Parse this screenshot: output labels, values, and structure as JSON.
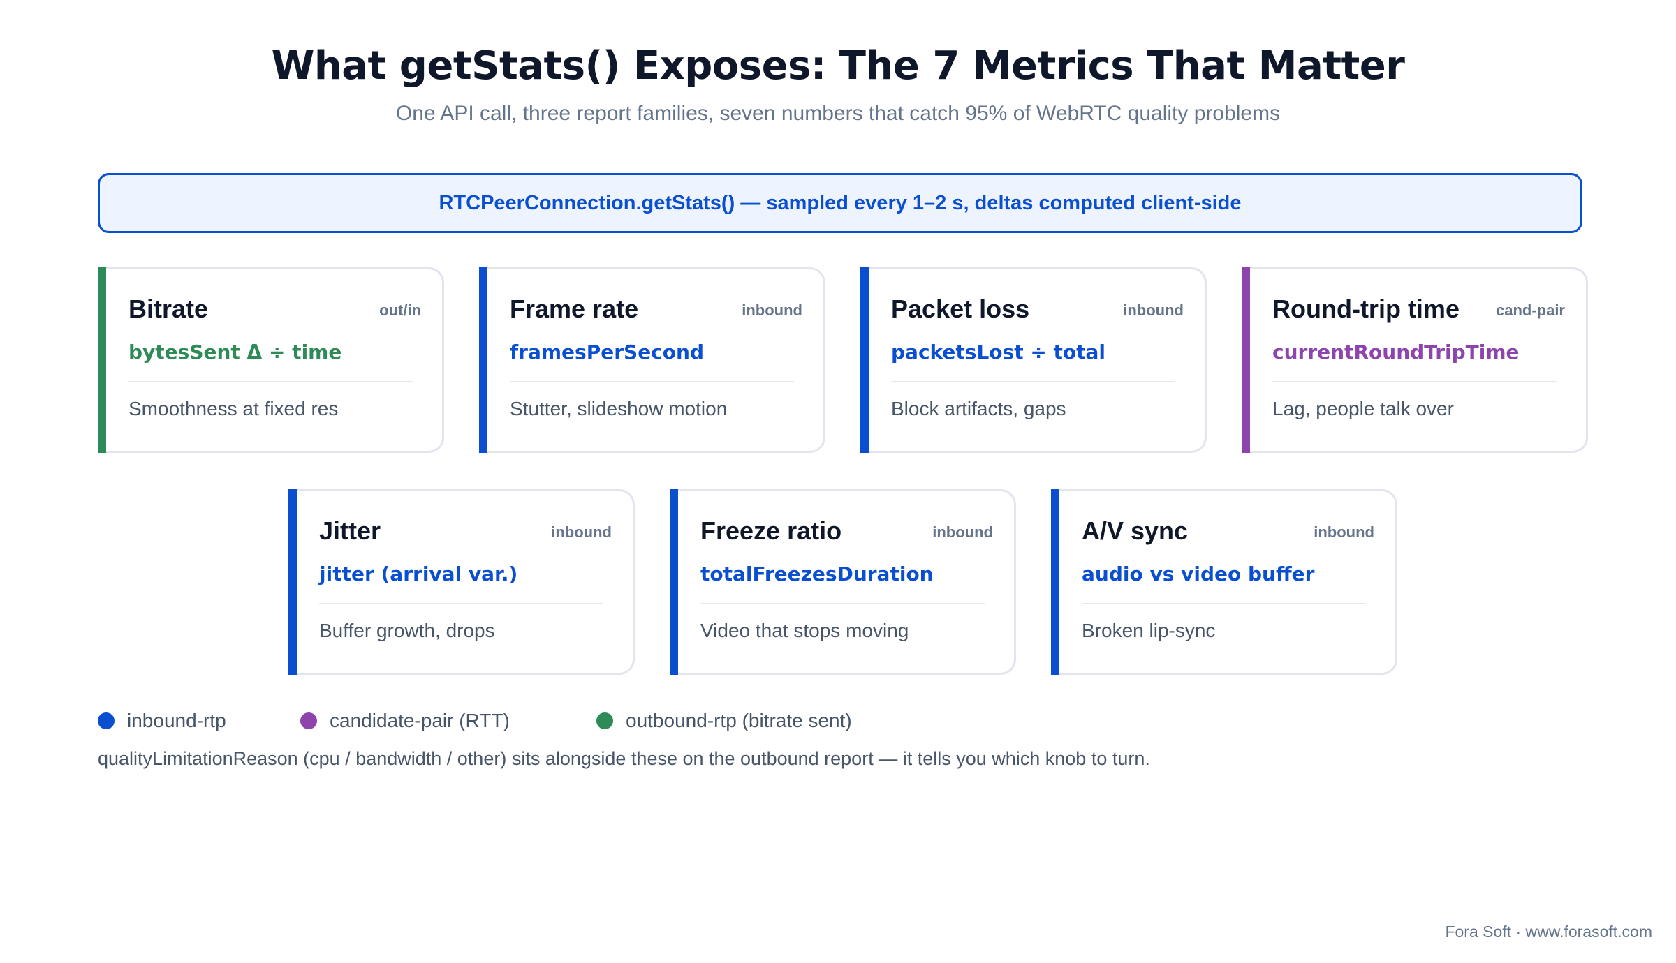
{
  "header": {
    "title": "What getStats() Exposes: The 7 Metrics That Matter",
    "subtitle": "One API call, three report families, seven numbers that catch 95% of WebRTC quality problems"
  },
  "banner": {
    "text": "RTCPeerConnection.getStats() — sampled every 1–2 s, deltas computed client-side"
  },
  "colors": {
    "inbound": "#0b4fd1",
    "candidate_pair": "#8e44ad",
    "outbound": "#2e8b57",
    "card_border": "#e2e5ee"
  },
  "cards": [
    {
      "name": "Bitrate",
      "tag": "out/in",
      "metric": "bytesSent Δ ÷ time",
      "desc": "Smoothness at fixed res",
      "family": "outbound"
    },
    {
      "name": "Frame rate",
      "tag": "inbound",
      "metric": "framesPerSecond",
      "desc": "Stutter, slideshow motion",
      "family": "inbound"
    },
    {
      "name": "Packet loss",
      "tag": "inbound",
      "metric": "packetsLost ÷ total",
      "desc": "Block artifacts, gaps",
      "family": "inbound"
    },
    {
      "name": "Round-trip time",
      "tag": "cand-pair",
      "metric": "currentRoundTripTime",
      "desc": "Lag, people talk over",
      "family": "candidate_pair"
    },
    {
      "name": "Jitter",
      "tag": "inbound",
      "metric": "jitter (arrival var.)",
      "desc": "Buffer growth, drops",
      "family": "inbound"
    },
    {
      "name": "Freeze ratio",
      "tag": "inbound",
      "metric": "totalFreezesDuration",
      "desc": "Video that stops moving",
      "family": "inbound"
    },
    {
      "name": "A/V sync",
      "tag": "inbound",
      "metric": "audio vs video buffer",
      "desc": "Broken lip-sync",
      "family": "inbound"
    }
  ],
  "legend": [
    {
      "label": "inbound-rtp",
      "family": "inbound"
    },
    {
      "label": "candidate-pair (RTT)",
      "family": "candidate_pair"
    },
    {
      "label": "outbound-rtp (bitrate sent)",
      "family": "outbound"
    }
  ],
  "note": "qualityLimitationReason (cpu / bandwidth / other) sits alongside these on the outbound report — it tells you which knob to turn.",
  "footer": "Fora Soft · www.forasoft.com"
}
